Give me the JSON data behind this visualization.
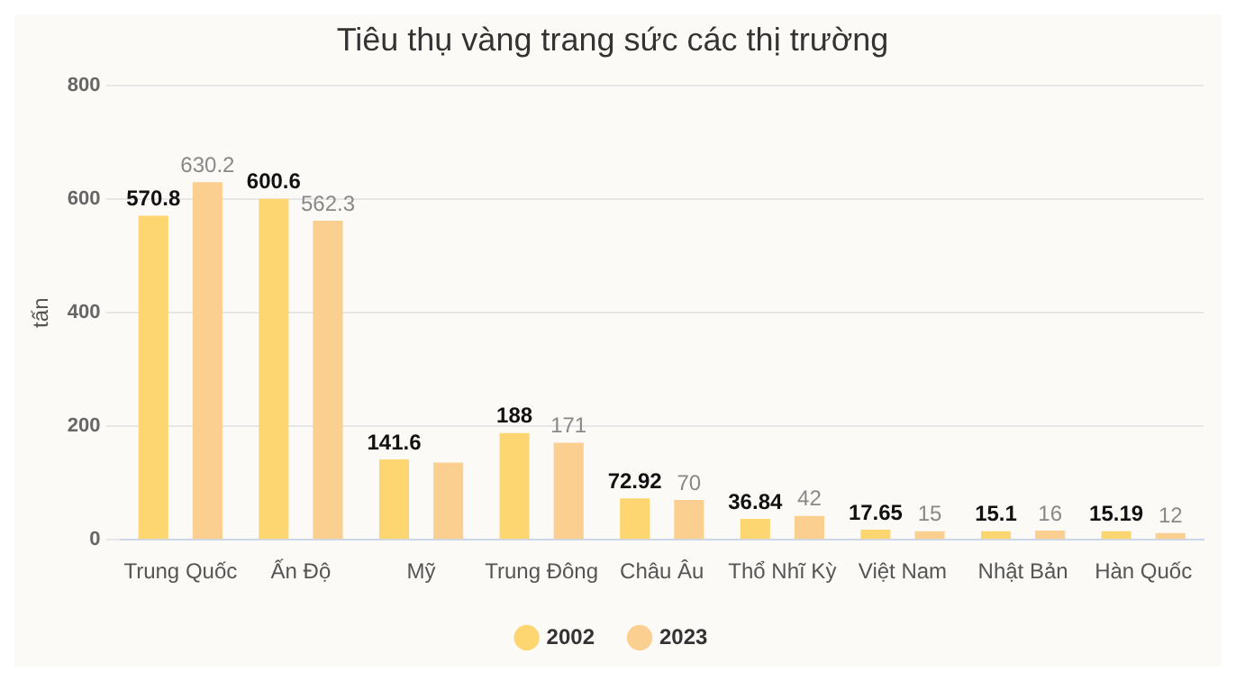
{
  "chart_data": {
    "type": "bar",
    "title": "Tiêu thụ vàng trang sức các thị trường",
    "ylabel": "tấn",
    "categories": [
      "Trung Quốc",
      "Ấn Độ",
      "Mỹ",
      "Trung Đông",
      "Châu Âu",
      "Thổ Nhĩ Kỳ",
      "Việt Nam",
      "Nhật Bản",
      "Hàn Quốc"
    ],
    "series": [
      {
        "name": "2002",
        "color": "#fdd672",
        "values": [
          570.8,
          600.6,
          141.6,
          188,
          72.92,
          36.84,
          17.65,
          15.1,
          15.19
        ],
        "value_labels": [
          "570.8",
          "600.6",
          "141.6",
          "188",
          "72.92",
          "36.84",
          "17.65",
          "15.1",
          "15.19"
        ]
      },
      {
        "name": "2023",
        "color": "#fbcf8f",
        "values": [
          630.2,
          562.3,
          136,
          171,
          70,
          42,
          15,
          16,
          12
        ],
        "value_labels": [
          "630.2",
          "562.3",
          null,
          "171",
          "70",
          "42",
          "15",
          "16",
          "12"
        ]
      }
    ],
    "ylim": [
      0,
      800
    ],
    "yticks": [
      0,
      200,
      400,
      600,
      800
    ],
    "grid": "y",
    "legend": "bottom"
  }
}
